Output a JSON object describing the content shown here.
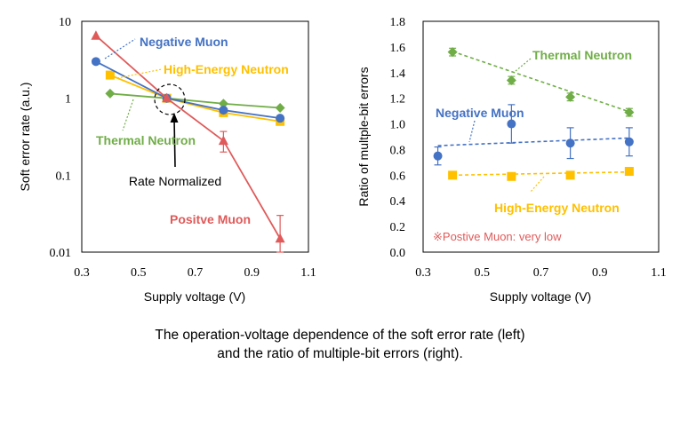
{
  "caption": {
    "line1": "The operation-voltage dependence of the soft error rate (left)",
    "line2": "and the ratio of multiple-bit errors (right)."
  },
  "colors": {
    "negative_muon": "#4472c4",
    "high_energy_neutron": "#ffc000",
    "thermal_neutron": "#70ad47",
    "positive_muon": "#e05a5a",
    "axis": "#000000"
  },
  "chart_data": [
    {
      "type": "line",
      "xlabel": "Supply voltage (V)",
      "ylabel": "Soft error rate (a.u.)",
      "xlim": [
        0.3,
        1.1
      ],
      "xticks": [
        0.3,
        0.5,
        0.7,
        0.9,
        1.1
      ],
      "xtick_labels": [
        "0.3",
        "0.5",
        "0.7",
        "0.9",
        "1.1"
      ],
      "yscale": "log",
      "ylim": [
        0.01,
        10
      ],
      "yticks": [
        0.01,
        0.1,
        1,
        10
      ],
      "ytick_labels": [
        "0.01",
        "0.1",
        "1",
        "10"
      ],
      "grid": false,
      "series": [
        {
          "name": "Negative Muon",
          "color_key": "negative_muon",
          "marker": "circle",
          "x": [
            0.35,
            0.6,
            0.8,
            1.0
          ],
          "y": [
            3.0,
            1.0,
            0.7,
            0.55
          ]
        },
        {
          "name": "High-Energy Neutron",
          "color_key": "high_energy_neutron",
          "marker": "square",
          "x": [
            0.4,
            0.6,
            0.8,
            1.0
          ],
          "y": [
            2.0,
            1.0,
            0.65,
            0.5
          ]
        },
        {
          "name": "Thermal Neutron",
          "color_key": "thermal_neutron",
          "marker": "diamond",
          "x": [
            0.4,
            0.6,
            0.8,
            1.0
          ],
          "y": [
            1.15,
            1.0,
            0.85,
            0.75
          ]
        },
        {
          "name": "Positve Muon",
          "color_key": "positive_muon",
          "marker": "triangle",
          "x": [
            0.35,
            0.6,
            0.8,
            1.0
          ],
          "y": [
            6.5,
            1.0,
            0.28,
            0.015
          ],
          "err_low": [
            null,
            null,
            0.2,
            0.01
          ],
          "err_high": [
            null,
            null,
            0.37,
            0.03
          ]
        }
      ],
      "annotations": [
        {
          "text": "Rate Normalized",
          "x": 0.62,
          "y": 1.0
        }
      ]
    },
    {
      "type": "scatter",
      "xlabel": "Supply voltage (V)",
      "ylabel": "Ratio of multple-bit errors",
      "xlim": [
        0.3,
        1.1
      ],
      "xticks": [
        0.3,
        0.5,
        0.7,
        0.9,
        1.1
      ],
      "xtick_labels": [
        "0.3",
        "0.5",
        "0.7",
        "0.9",
        "1.1"
      ],
      "ylim": [
        0.0,
        1.8
      ],
      "yticks": [
        0.0,
        0.2,
        0.4,
        0.6,
        0.8,
        1.0,
        1.2,
        1.4,
        1.6,
        1.8
      ],
      "ytick_labels": [
        "0.0",
        "0.2",
        "0.4",
        "0.6",
        "0.8",
        "1.0",
        "1.2",
        "1.4",
        "1.6",
        "1.8"
      ],
      "grid": false,
      "series": [
        {
          "name": "Thermal Neutron",
          "color_key": "thermal_neutron",
          "marker": "diamond",
          "x": [
            0.4,
            0.6,
            0.8,
            1.0
          ],
          "y": [
            1.56,
            1.34,
            1.21,
            1.09
          ],
          "err": [
            0.03,
            0.03,
            0.03,
            0.03
          ],
          "trend": [
            1.565,
            1.095
          ]
        },
        {
          "name": "Negative Muon",
          "color_key": "negative_muon",
          "marker": "circle",
          "x": [
            0.35,
            0.6,
            0.8,
            1.0
          ],
          "y": [
            0.75,
            1.0,
            0.85,
            0.86
          ],
          "err": [
            0.07,
            0.15,
            0.12,
            0.11
          ],
          "trend": [
            0.83,
            0.89
          ]
        },
        {
          "name": "High-Energy Neutron",
          "color_key": "high_energy_neutron",
          "marker": "square",
          "x": [
            0.4,
            0.6,
            0.8,
            1.0
          ],
          "y": [
            0.6,
            0.59,
            0.6,
            0.63
          ],
          "err": [
            null,
            null,
            null,
            null
          ],
          "trend": [
            0.6,
            0.625
          ]
        }
      ],
      "note": "※Postive Muon: very low"
    }
  ]
}
